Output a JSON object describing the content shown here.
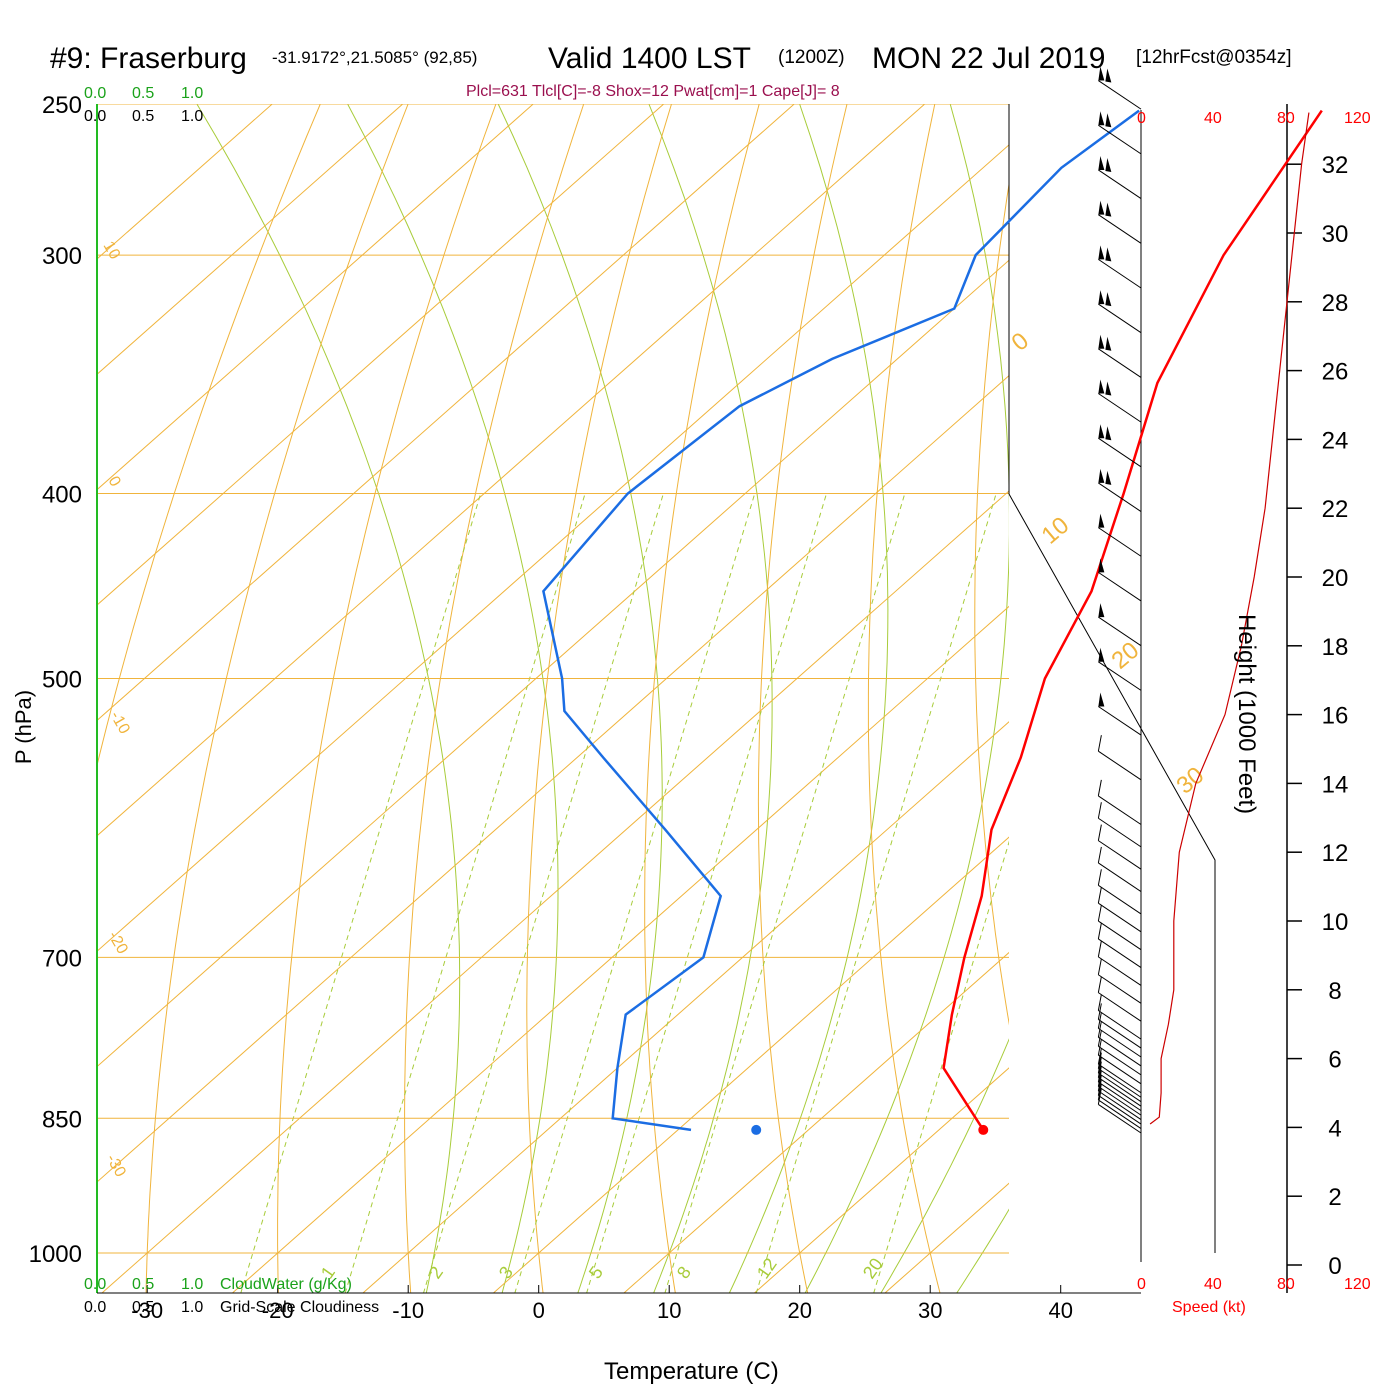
{
  "header": {
    "station": "#9: Fraserburg",
    "coords": "-31.9172°,21.5085° (92,85)",
    "valid": "Valid 1400 LST",
    "zulu": "(1200Z)",
    "date": "MON 22 Jul 2019",
    "forecast": "[12hrFcst@0354z]",
    "indices": "Plcl=631 Tlcl[C]=-8 Shox=12 Pwat[cm]=1 Cape[J]= 8"
  },
  "cloud_scales": {
    "top_green": [
      "0.0",
      "0.5",
      "1.0"
    ],
    "top_black": [
      "0.0",
      "0.5",
      "1.0"
    ],
    "bottom_green": [
      "0.0",
      "0.5",
      "1.0"
    ],
    "bottom_green_label": "CloudWater (g/Kg)",
    "bottom_black": [
      "0.0",
      "0.5",
      "1.0"
    ],
    "bottom_black_label": "Grid-Scale Cloudiness"
  },
  "speed_axis": {
    "ticks": [
      "0",
      "40",
      "80",
      "120"
    ],
    "label": "Speed (kt)"
  },
  "colors": {
    "temperature": "#ff0000",
    "dewpoint": "#1b6de3",
    "isotherm": "#f0b43c",
    "adiabat": "#a8cc3a",
    "grid_green": "#22bb22",
    "title_magenta": "#9a0f4e"
  },
  "chart_data": {
    "type": "skew-t log-p",
    "xlabel": "Temperature (C)",
    "ylabel": "P (hPa)",
    "y2label": "Height (1000 Feet)",
    "x_ticks": [
      -30,
      -20,
      -10,
      0,
      10,
      20,
      30,
      40
    ],
    "y_ticks": [
      250,
      300,
      400,
      500,
      700,
      850,
      1000
    ],
    "height_ticks": [
      0,
      2,
      4,
      6,
      8,
      10,
      12,
      14,
      16,
      18,
      20,
      22,
      24,
      26,
      28,
      30,
      32
    ],
    "isotherm_labels": [
      "10",
      "0",
      "-10",
      "-20",
      "-30"
    ],
    "isotherm_labels_right": [
      "0",
      "10",
      "20",
      "30"
    ],
    "mixing_ratio_labels": [
      "1",
      "2",
      "3",
      "5",
      "8",
      "12",
      "20"
    ],
    "temperature_profile": [
      {
        "p": 252,
        "t": -39
      },
      {
        "p": 300,
        "t": -34
      },
      {
        "p": 350,
        "t": -28
      },
      {
        "p": 400,
        "t": -21
      },
      {
        "p": 450,
        "t": -15
      },
      {
        "p": 500,
        "t": -11
      },
      {
        "p": 550,
        "t": -6
      },
      {
        "p": 600,
        "t": -2
      },
      {
        "p": 650,
        "t": 3
      },
      {
        "p": 700,
        "t": 7
      },
      {
        "p": 750,
        "t": 11
      },
      {
        "p": 800,
        "t": 15
      },
      {
        "p": 862,
        "t": 23.4
      }
    ],
    "dewpoint_profile": [
      {
        "p": 252,
        "t": -53
      },
      {
        "p": 270,
        "t": -54
      },
      {
        "p": 300,
        "t": -53
      },
      {
        "p": 320,
        "t": -50
      },
      {
        "p": 340,
        "t": -55
      },
      {
        "p": 360,
        "t": -58
      },
      {
        "p": 400,
        "t": -59
      },
      {
        "p": 450,
        "t": -57
      },
      {
        "p": 500,
        "t": -48
      },
      {
        "p": 520,
        "t": -45
      },
      {
        "p": 550,
        "t": -38
      },
      {
        "p": 600,
        "t": -27
      },
      {
        "p": 650,
        "t": -17
      },
      {
        "p": 700,
        "t": -13
      },
      {
        "p": 750,
        "t": -14
      },
      {
        "p": 800,
        "t": -10
      },
      {
        "p": 850,
        "t": -6
      },
      {
        "p": 862,
        "t": 1
      }
    ],
    "surface_temperature_point": {
      "p": 862,
      "t": 23.4
    },
    "surface_dewpoint_point": {
      "p": 862,
      "t": 6
    },
    "speed_profile": [
      {
        "h": 4.1,
        "s": 5
      },
      {
        "h": 4.3,
        "s": 10
      },
      {
        "h": 5,
        "s": 11
      },
      {
        "h": 6,
        "s": 11
      },
      {
        "h": 7,
        "s": 15
      },
      {
        "h": 8,
        "s": 18
      },
      {
        "h": 10,
        "s": 18
      },
      {
        "h": 12,
        "s": 21
      },
      {
        "h": 14,
        "s": 30
      },
      {
        "h": 16,
        "s": 46
      },
      {
        "h": 18,
        "s": 55
      },
      {
        "h": 20,
        "s": 62
      },
      {
        "h": 22,
        "s": 68
      },
      {
        "h": 24,
        "s": 72
      },
      {
        "h": 26,
        "s": 76
      },
      {
        "h": 28,
        "s": 80
      },
      {
        "h": 30,
        "s": 84
      },
      {
        "h": 32,
        "s": 88
      },
      {
        "h": 33.5,
        "s": 92
      }
    ],
    "wind_barb_heights": [
      1.1,
      1.2,
      1.3,
      1.4,
      1.5,
      1.6,
      1.7,
      1.8,
      1.9,
      2.0,
      2.2,
      2.4,
      2.6,
      2.8,
      3.0,
      3.2,
      3.6,
      4.0,
      4.4,
      4.8,
      5.2,
      5.6,
      6.0,
      6.5,
      7.0,
      7.5,
      8.0,
      9.0,
      10.0,
      11.0,
      12.0,
      13.0,
      14.0,
      15.0,
      16.0,
      17.0,
      18.0,
      19.0,
      20.0,
      21.0,
      22.0,
      23.0,
      24.0
    ]
  }
}
